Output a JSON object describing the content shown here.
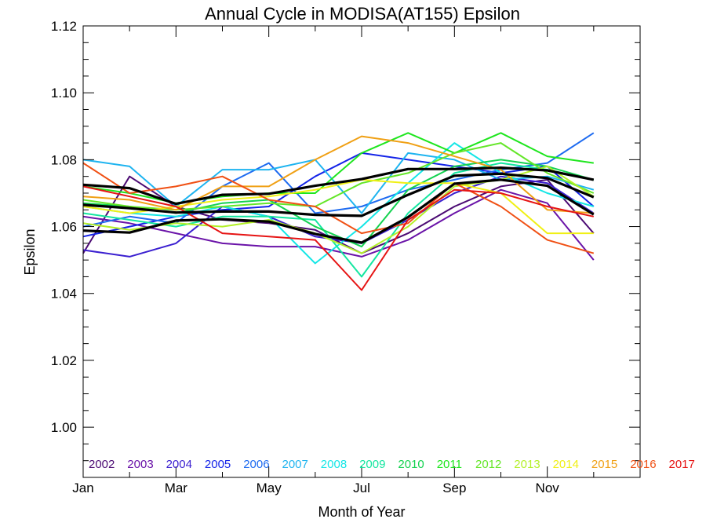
{
  "chart_data": {
    "type": "line",
    "title": "Annual Cycle in MODISA(AT155) Epsilon",
    "xlabel": "Month of Year",
    "ylabel": "Epsilon",
    "xlim": [
      1,
      13
    ],
    "ylim": [
      0.985,
      1.12
    ],
    "x_ticks": [
      {
        "value": 1,
        "label": "Jan"
      },
      {
        "value": 3,
        "label": "Mar"
      },
      {
        "value": 5,
        "label": "May"
      },
      {
        "value": 7,
        "label": "Jul"
      },
      {
        "value": 9,
        "label": "Sep"
      },
      {
        "value": 11,
        "label": "Nov"
      }
    ],
    "y_ticks": [
      {
        "value": 1.0,
        "label": "1.00"
      },
      {
        "value": 1.02,
        "label": "1.02"
      },
      {
        "value": 1.04,
        "label": "1.04"
      },
      {
        "value": 1.06,
        "label": "1.06"
      },
      {
        "value": 1.08,
        "label": "1.08"
      },
      {
        "value": 1.1,
        "label": "1.10"
      },
      {
        "value": 1.12,
        "label": "1.12"
      }
    ],
    "x": [
      1,
      2,
      3,
      4,
      5,
      6,
      7,
      8,
      9,
      10,
      11,
      12
    ],
    "legend_position": "bottom inside plot",
    "series": [
      {
        "name": "2002",
        "color": "#4B0A73",
        "values": [
          1.052,
          1.075,
          1.066,
          1.062,
          1.061,
          1.059,
          1.052,
          1.058,
          1.066,
          1.072,
          1.074,
          1.058
        ]
      },
      {
        "name": "2003",
        "color": "#6A13A8",
        "values": [
          1.063,
          1.061,
          1.058,
          1.055,
          1.054,
          1.054,
          1.051,
          1.056,
          1.064,
          1.071,
          1.067,
          1.05
        ]
      },
      {
        "name": "2004",
        "color": "#3A1FD0",
        "values": [
          1.053,
          1.051,
          1.055,
          1.066,
          1.063,
          1.057,
          1.055,
          1.062,
          1.07,
          1.075,
          1.073,
          1.064
        ]
      },
      {
        "name": "2005",
        "color": "#1424E8",
        "values": [
          1.057,
          1.06,
          1.063,
          1.065,
          1.066,
          1.075,
          1.082,
          1.08,
          1.078,
          1.076,
          1.078,
          1.066
        ]
      },
      {
        "name": "2006",
        "color": "#1E6BF0",
        "values": [
          1.06,
          1.063,
          1.061,
          1.072,
          1.079,
          1.064,
          1.066,
          1.071,
          1.074,
          1.077,
          1.079,
          1.088
        ]
      },
      {
        "name": "2007",
        "color": "#1EB4F0",
        "values": [
          1.08,
          1.078,
          1.066,
          1.077,
          1.077,
          1.08,
          1.064,
          1.082,
          1.08,
          1.074,
          1.075,
          1.071
        ]
      },
      {
        "name": "2008",
        "color": "#14E6E6",
        "values": [
          1.066,
          1.064,
          1.063,
          1.066,
          1.063,
          1.049,
          1.06,
          1.073,
          1.085,
          1.076,
          1.07,
          1.066
        ]
      },
      {
        "name": "2009",
        "color": "#14E6A0",
        "values": [
          1.064,
          1.062,
          1.06,
          1.063,
          1.063,
          1.062,
          1.045,
          1.064,
          1.076,
          1.079,
          1.077,
          1.074
        ]
      },
      {
        "name": "2010",
        "color": "#14D250",
        "values": [
          1.067,
          1.066,
          1.064,
          1.067,
          1.068,
          1.06,
          1.054,
          1.071,
          1.078,
          1.08,
          1.078,
          1.074
        ]
      },
      {
        "name": "2011",
        "color": "#1EE61E",
        "values": [
          1.072,
          1.07,
          1.067,
          1.069,
          1.07,
          1.07,
          1.082,
          1.088,
          1.082,
          1.088,
          1.081,
          1.079
        ]
      },
      {
        "name": "2012",
        "color": "#64E628",
        "values": [
          1.068,
          1.066,
          1.065,
          1.066,
          1.067,
          1.066,
          1.073,
          1.076,
          1.082,
          1.085,
          1.076,
          1.07
        ]
      },
      {
        "name": "2013",
        "color": "#B4F028",
        "values": [
          1.061,
          1.059,
          1.061,
          1.06,
          1.062,
          1.058,
          1.052,
          1.06,
          1.072,
          1.074,
          1.078,
          1.069
        ]
      },
      {
        "name": "2014",
        "color": "#F0F014",
        "values": [
          1.066,
          1.064,
          1.066,
          1.068,
          1.069,
          1.071,
          1.074,
          1.073,
          1.073,
          1.07,
          1.058,
          1.058
        ]
      },
      {
        "name": "2015",
        "color": "#F0A014",
        "values": [
          1.069,
          1.068,
          1.065,
          1.072,
          1.072,
          1.08,
          1.087,
          1.085,
          1.081,
          1.077,
          1.065,
          1.064
        ]
      },
      {
        "name": "2016",
        "color": "#F05014",
        "values": [
          1.079,
          1.07,
          1.072,
          1.075,
          1.068,
          1.066,
          1.058,
          1.061,
          1.073,
          1.066,
          1.056,
          1.052
        ]
      },
      {
        "name": "2017",
        "color": "#E61414",
        "values": [
          1.072,
          1.069,
          1.066,
          1.058,
          1.057,
          1.056,
          1.041,
          1.062,
          1.071,
          1.07,
          1.066,
          1.063
        ]
      }
    ],
    "mean_lines": {
      "color": "#000000",
      "series": [
        {
          "values": [
            1.0665,
            1.0655,
            1.0642,
            1.0645,
            1.0645,
            1.0635,
            1.0632,
            1.0695,
            1.0752,
            1.0758,
            1.0745,
            1.0688
          ]
        },
        {
          "values": [
            1.0725,
            1.0715,
            1.0668,
            1.0695,
            1.0698,
            1.0722,
            1.0742,
            1.0772,
            1.0772,
            1.0776,
            1.0768,
            1.074
          ]
        },
        {
          "values": [
            1.0588,
            1.0582,
            1.0618,
            1.0622,
            1.0615,
            1.0578,
            1.0552,
            1.0628,
            1.0728,
            1.074,
            1.0722,
            1.0636
          ]
        }
      ]
    }
  }
}
